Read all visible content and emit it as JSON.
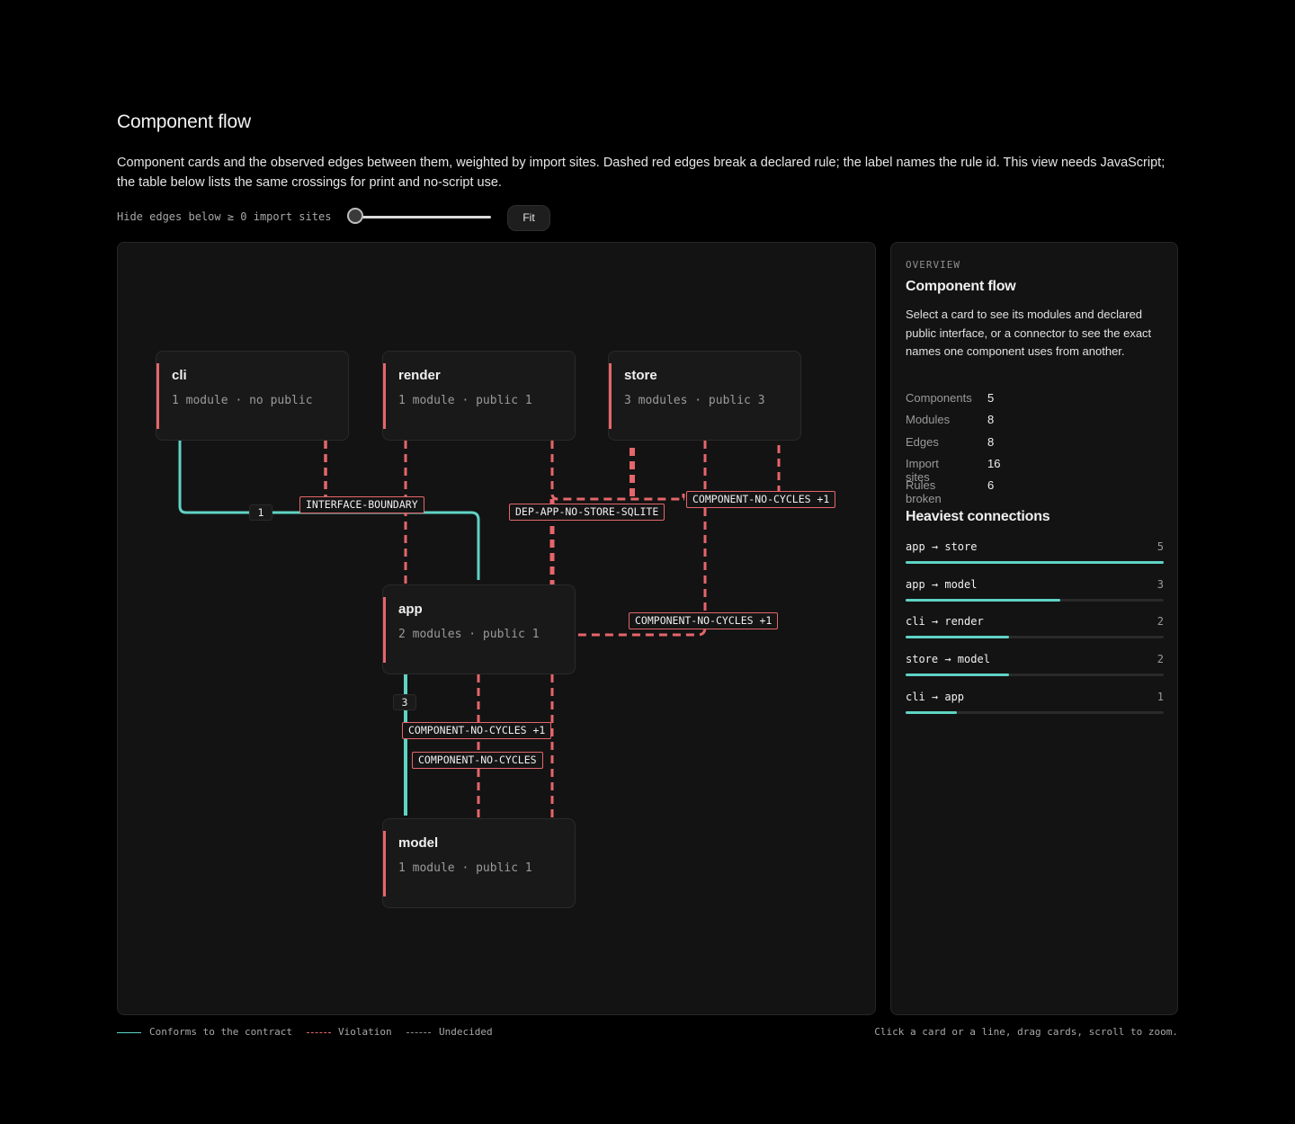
{
  "header": {
    "title": "Component flow",
    "description": "Component cards and the observed edges between them, weighted by import sites. Dashed red edges break a declared rule; the label names the rule id. This view needs JavaScript; the table below lists the same crossings for print and no-script use."
  },
  "controls": {
    "threshold_label": "Hide edges below ≥ 0 import sites",
    "threshold_value": 0,
    "threshold_min": 0,
    "threshold_max": 5,
    "fit_label": "Fit"
  },
  "graph": {
    "cards": [
      {
        "name": "cli",
        "meta": "1 module · no public"
      },
      {
        "name": "render",
        "meta": "1 module · public 1"
      },
      {
        "name": "store",
        "meta": "3 modules · public 3"
      },
      {
        "name": "app",
        "meta": "2 modules · public 1"
      },
      {
        "name": "model",
        "meta": "1 module · public 1"
      }
    ],
    "edge_labels": {
      "interface_boundary": "INTERFACE-BOUNDARY",
      "dep_app_no_store_sqlite": "DEP-APP-NO-STORE-SQLITE",
      "no_cycles_top": "COMPONENT-NO-CYCLES +1",
      "no_cycles_mid": "COMPONENT-NO-CYCLES +1",
      "no_cycles_low": "COMPONENT-NO-CYCLES +1",
      "no_cycles_bottom": "COMPONENT-NO-CYCLES",
      "count_cli_app": "1",
      "count_app_model": "3"
    }
  },
  "panel": {
    "eyebrow": "OVERVIEW",
    "title": "Component flow",
    "description": "Select a card to see its modules and declared public interface, or a connector to see the exact names one component uses from another.",
    "stats": [
      {
        "label": "Components",
        "value": "5"
      },
      {
        "label": "Modules",
        "value": "8"
      },
      {
        "label": "Edges",
        "value": "8"
      },
      {
        "label": "Import sites",
        "value": "16"
      },
      {
        "label": "Rules broken",
        "value": "6"
      }
    ],
    "heaviest_title": "Heaviest connections",
    "connections": [
      {
        "name": "app → store",
        "value": 5,
        "label": "5"
      },
      {
        "name": "app → model",
        "value": 3,
        "label": "3"
      },
      {
        "name": "cli → render",
        "value": 2,
        "label": "2"
      },
      {
        "name": "store → model",
        "value": 2,
        "label": "2"
      },
      {
        "name": "cli → app",
        "value": 1,
        "label": "1"
      }
    ],
    "max_connection": 5
  },
  "legend": {
    "conforms": "Conforms to the contract",
    "violation": "Violation",
    "undecided": "Undecided"
  },
  "hint": "Click a card or a line, drag cards, scroll to zoom.",
  "colors": {
    "conform": "#5fd3c4",
    "violation": "#e5666b",
    "background": "#000000",
    "surface": "#131313"
  }
}
